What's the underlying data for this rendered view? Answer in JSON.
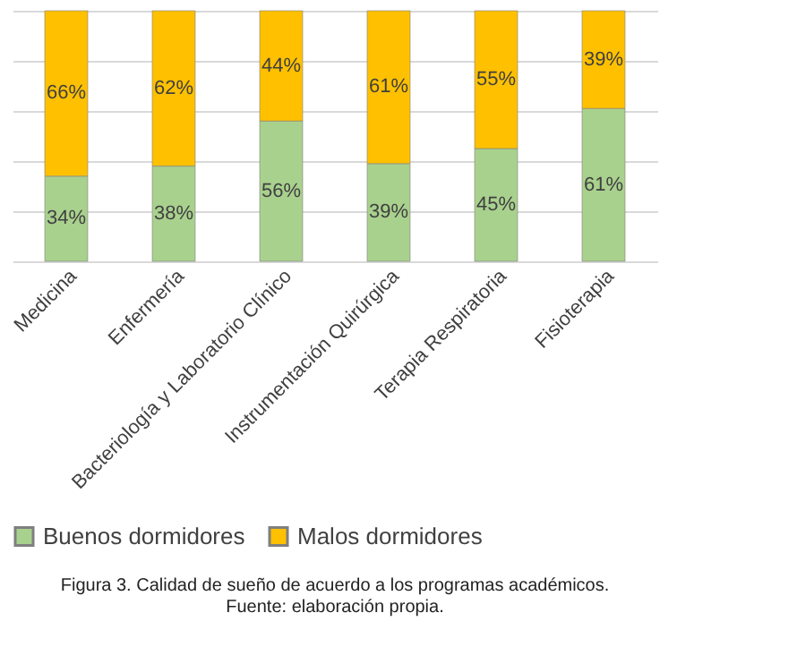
{
  "chart_data": {
    "type": "bar",
    "stacked": true,
    "grid": "y",
    "legend": "bottom",
    "tick_labels": "x",
    "categories": [
      "Medicina",
      "Enfermería",
      "Bacteriología y Laboratorio Clínico",
      "Instrumentación Quirúrgica",
      "Terapia Respiratoria",
      "Fisioterapia"
    ],
    "series": [
      {
        "name": "Buenos dormidores",
        "color": "#a9d18e",
        "values": [
          34,
          38,
          56,
          39,
          45,
          61
        ],
        "value_labels": [
          "34%",
          "38%",
          "56%",
          "39%",
          "45%",
          "61%"
        ]
      },
      {
        "name": "Malos dormidores",
        "color": "#ffc000",
        "values": [
          66,
          62,
          44,
          61,
          55,
          39
        ],
        "value_labels": [
          "66%",
          "62%",
          "44%",
          "61%",
          "55%",
          "39%"
        ]
      }
    ],
    "annotations": [
      "Figura 3. Calidad de sueño de acuerdo a los programas académicos.",
      "Fuente: elaboración propia."
    ]
  }
}
